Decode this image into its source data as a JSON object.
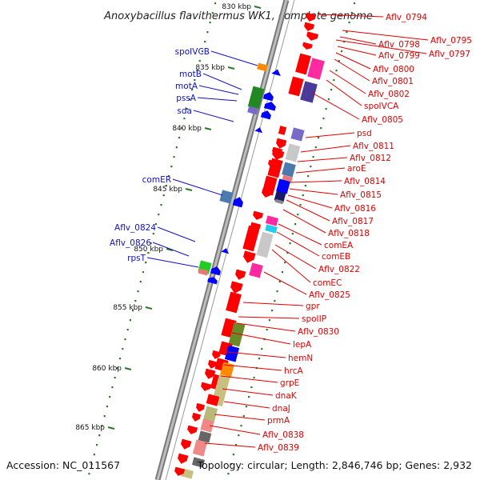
{
  "title": "Anoxybacillus flavithermus WK1, complete genome",
  "footer": {
    "accession": "Accession: NC_011567",
    "topology": "Topology: circular; Length: 2,846,746 bp; Genes: 2,932"
  },
  "ticks": [
    "830 kbp",
    "835 kbp",
    "840 kbp",
    "845 kbp",
    "850 kbp",
    "855 kbp",
    "860 kbp",
    "865 kbp"
  ],
  "right_labels": [
    "Aflv_0794",
    "Aflv_0795",
    "Aflv_0797",
    "Aflv_0798",
    "Aflv_0799",
    "Aflv_0800",
    "Aflv_0801",
    "Aflv_0802",
    "spoIVCA",
    "Aflv_0805",
    "psd",
    "Aflv_0811",
    "Aflv_0812",
    "aroE",
    "Aflv_0814",
    "Aflv_0815",
    "Aflv_0816",
    "Aflv_0817",
    "Aflv_0818",
    "comEA",
    "comEB",
    "Aflv_0822",
    "comEC",
    "Aflv_0825",
    "gpr",
    "spoIIP",
    "Aflv_0830",
    "lepA",
    "hemN",
    "hrcA",
    "grpE",
    "dnaK",
    "dnaJ",
    "prmA",
    "Aflv_0838",
    "Aflv_0839"
  ],
  "left_labels": [
    "spoIVCB",
    "motB",
    "motA",
    "pssA",
    "sda",
    "comER",
    "Aflv_0824",
    "Aflv_0826",
    "rpsT"
  ],
  "colors": {
    "label_red": "#e00000",
    "label_blue": "#1010c8",
    "gene_red": "#ff0000",
    "gene_blue": "#0000ff",
    "backbone": "#777777",
    "tick_green": "#2a7a2a"
  }
}
